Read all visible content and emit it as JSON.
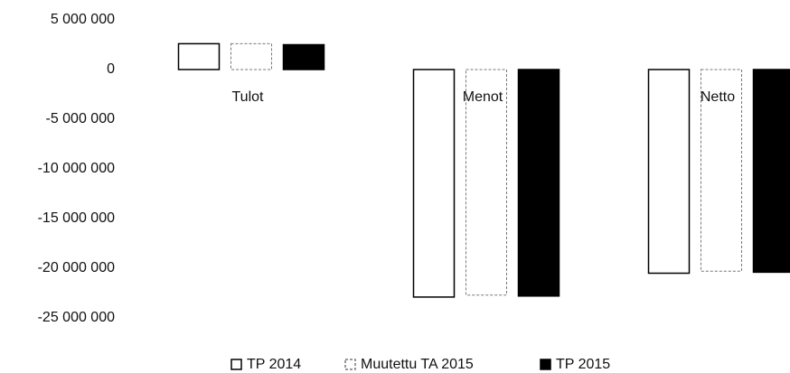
{
  "chart_data": {
    "type": "bar",
    "categories": [
      "Tulot",
      "Menot",
      "Netto"
    ],
    "series": [
      {
        "name": "TP 2014",
        "color": "#ffffff",
        "values": [
          2600000,
          -22900000,
          -20500000
        ]
      },
      {
        "name": "Muutettu TA 2015",
        "color": "#ffffff",
        "values": [
          2600000,
          -22700000,
          -20300000
        ]
      },
      {
        "name": "TP 2015",
        "color": "#000000",
        "values": [
          2500000,
          -22800000,
          -20400000
        ]
      }
    ],
    "ylim": [
      -25000000,
      5000000
    ],
    "yticks": [
      {
        "value": -25000000,
        "label": "-25 000 000"
      },
      {
        "value": -20000000,
        "label": "-20 000 000"
      },
      {
        "value": -15000000,
        "label": "-15 000 000"
      },
      {
        "value": -10000000,
        "label": "-10 000 000"
      },
      {
        "value": -5000000,
        "label": "-5 000 000"
      },
      0,
      {
        "value": 5000000,
        "label": "5 000 000"
      }
    ],
    "grid": false,
    "legend": "bottom"
  }
}
